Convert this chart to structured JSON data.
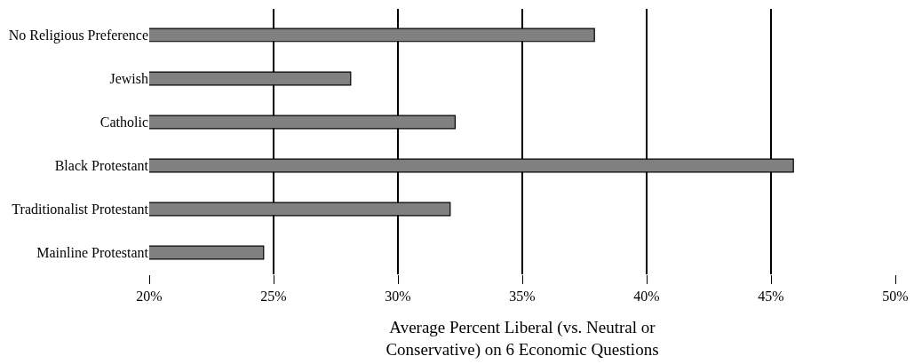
{
  "chart_data": {
    "type": "bar",
    "orientation": "horizontal",
    "categories": [
      "No Religious Preference",
      "Jewish",
      "Catholic",
      "Black Protestant",
      "Traditionalist Protestant",
      "Mainline Protestant"
    ],
    "values": [
      37.9,
      28.1,
      32.3,
      45.9,
      32.1,
      24.6
    ],
    "color": "#808080",
    "xlabel": "Average Percent Liberal (vs. Neutral or\nConservative) on 6 Economic Questions",
    "xlim": [
      20,
      50
    ],
    "xticks": [
      {
        "value": 20,
        "label": "20%"
      },
      {
        "value": 25,
        "label": "25%"
      },
      {
        "value": 30,
        "label": "30%"
      },
      {
        "value": 35,
        "label": "35%"
      },
      {
        "value": 40,
        "label": "40%"
      },
      {
        "value": 45,
        "label": "45%"
      },
      {
        "value": 50,
        "label": "50%"
      }
    ],
    "grid": "x",
    "legend": false
  }
}
